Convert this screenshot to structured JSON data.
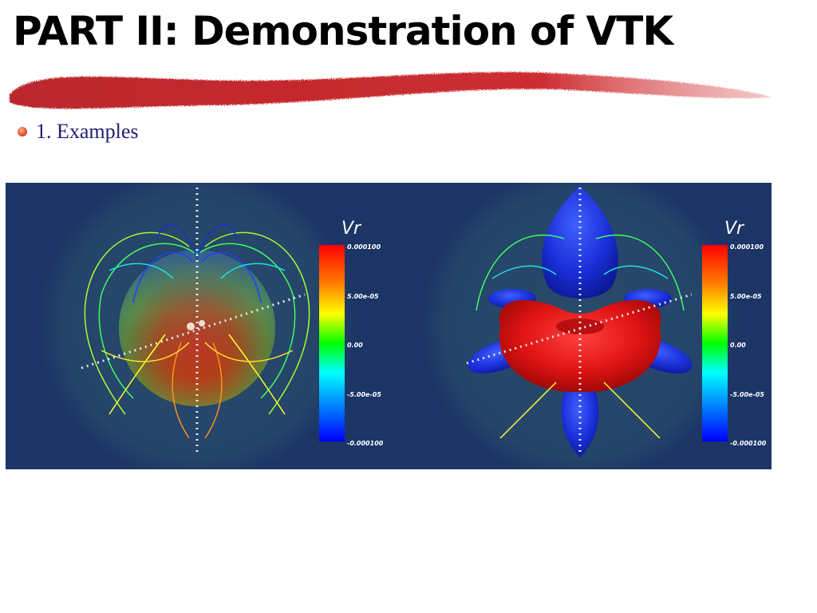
{
  "slide": {
    "title": "PART II: Demonstration of VTK"
  },
  "bullets": [
    {
      "text": "1. Examples"
    }
  ],
  "colors": {
    "background": "#1c3566",
    "accent_stroke": "#c4161c",
    "bullet": "#d8401c",
    "bullet_text": "#1f1f70"
  },
  "panels": [
    {
      "legend": {
        "title": "Vr",
        "ticks": [
          "0.000100",
          "5.00e-05",
          "0.00",
          "-5.00e-05",
          "-0.000100"
        ]
      }
    },
    {
      "legend": {
        "title": "Vr",
        "ticks": [
          "0.000100",
          "5.00e-05",
          "0.00",
          "-5.00e-05",
          "-0.000100"
        ]
      }
    }
  ]
}
